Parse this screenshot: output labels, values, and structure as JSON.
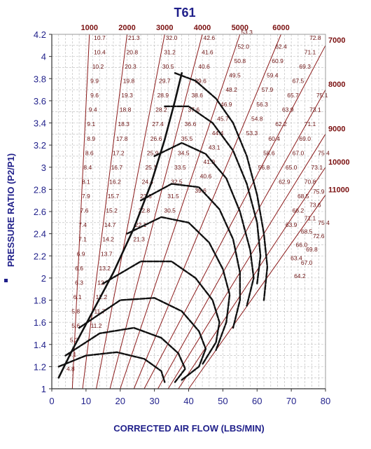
{
  "chart_data": {
    "type": "line",
    "title": "T61",
    "xlabel": "CORRECTED AIR FLOW (LBS/MIN)",
    "ylabel": "PRESSURE RATIO (P2/P1)",
    "xlim": [
      0,
      80
    ],
    "ylim": [
      1,
      4.2
    ],
    "xticks": [
      0,
      10,
      20,
      30,
      40,
      50,
      60,
      70,
      80
    ],
    "yticks": [
      1,
      1.2,
      1.4,
      1.6,
      1.8,
      2,
      2.2,
      2.4,
      2.6,
      2.8,
      3,
      3.2,
      3.4,
      3.6,
      3.8,
      4,
      4.2
    ],
    "grid": true,
    "speed_lines": [
      {
        "label": "1000",
        "points": [
          [
            6,
            1.0
          ],
          [
            11,
            4.2
          ]
        ]
      },
      {
        "label": "2000",
        "points": [
          [
            9,
            1.0
          ],
          [
            22,
            4.2
          ]
        ]
      },
      {
        "label": "3000",
        "points": [
          [
            13,
            1.0
          ],
          [
            33,
            4.2
          ]
        ]
      },
      {
        "label": "4000",
        "points": [
          [
            17,
            1.0
          ],
          [
            44,
            4.2
          ]
        ]
      },
      {
        "label": "5000",
        "points": [
          [
            20,
            1.0
          ],
          [
            55,
            4.2
          ]
        ]
      },
      {
        "label": "6000",
        "points": [
          [
            24,
            1.0
          ],
          [
            67,
            4.2
          ]
        ]
      },
      {
        "label": "7000",
        "points": [
          [
            27,
            1.0
          ],
          [
            80,
            4.1
          ]
        ]
      },
      {
        "label": "8000",
        "points": [
          [
            31,
            1.0
          ],
          [
            80,
            3.7
          ]
        ]
      },
      {
        "label": "9000",
        "points": [
          [
            34,
            1.0
          ],
          [
            80,
            3.3
          ]
        ]
      },
      {
        "label": "10000",
        "points": [
          [
            37,
            1.0
          ],
          [
            80,
            3.0
          ]
        ]
      },
      {
        "label": "11000",
        "points": [
          [
            40,
            1.0
          ],
          [
            80,
            2.75
          ]
        ]
      }
    ],
    "efficiency_values": [
      {
        "x": 14,
        "y": 4.15,
        "label": "10.7"
      },
      {
        "x": 14,
        "y": 4.02,
        "label": "10.4"
      },
      {
        "x": 13.5,
        "y": 3.89,
        "label": "10.2"
      },
      {
        "x": 12.5,
        "y": 3.76,
        "label": "9.9"
      },
      {
        "x": 12.5,
        "y": 3.63,
        "label": "9.6"
      },
      {
        "x": 12,
        "y": 3.5,
        "label": "9.4"
      },
      {
        "x": 11.5,
        "y": 3.37,
        "label": "9.1"
      },
      {
        "x": 11.5,
        "y": 3.24,
        "label": "8.9"
      },
      {
        "x": 11,
        "y": 3.11,
        "label": "8.6"
      },
      {
        "x": 10.5,
        "y": 2.98,
        "label": "8.4"
      },
      {
        "x": 10,
        "y": 2.85,
        "label": "8.1"
      },
      {
        "x": 10,
        "y": 2.72,
        "label": "7.9"
      },
      {
        "x": 9.5,
        "y": 2.59,
        "label": "7.6"
      },
      {
        "x": 9,
        "y": 2.46,
        "label": "7.4"
      },
      {
        "x": 9,
        "y": 2.33,
        "label": "7.1"
      },
      {
        "x": 8.5,
        "y": 2.2,
        "label": "6.9"
      },
      {
        "x": 8,
        "y": 2.07,
        "label": "6.6"
      },
      {
        "x": 8,
        "y": 1.94,
        "label": "6.3"
      },
      {
        "x": 7.5,
        "y": 1.81,
        "label": "6.1"
      },
      {
        "x": 7,
        "y": 1.68,
        "label": "5.8"
      },
      {
        "x": 7,
        "y": 1.55,
        "label": "5.6"
      },
      {
        "x": 6.5,
        "y": 1.42,
        "label": "5.3"
      },
      {
        "x": 6,
        "y": 1.29,
        "label": "5.1"
      },
      {
        "x": 5.5,
        "y": 1.16,
        "label": "4.8"
      },
      {
        "x": 24,
        "y": 4.15,
        "label": "21.3"
      },
      {
        "x": 23.5,
        "y": 4.02,
        "label": "20.8"
      },
      {
        "x": 23,
        "y": 3.89,
        "label": "20.3"
      },
      {
        "x": 22.5,
        "y": 3.76,
        "label": "19.8"
      },
      {
        "x": 22,
        "y": 3.63,
        "label": "19.3"
      },
      {
        "x": 21.5,
        "y": 3.5,
        "label": "18.8"
      },
      {
        "x": 21,
        "y": 3.37,
        "label": "18.3"
      },
      {
        "x": 20.5,
        "y": 3.24,
        "label": "17.8"
      },
      {
        "x": 19.5,
        "y": 3.11,
        "label": "17.2"
      },
      {
        "x": 19,
        "y": 2.98,
        "label": "16.7"
      },
      {
        "x": 18.5,
        "y": 2.85,
        "label": "16.2"
      },
      {
        "x": 18,
        "y": 2.72,
        "label": "15.7"
      },
      {
        "x": 17.5,
        "y": 2.59,
        "label": "15.2"
      },
      {
        "x": 17,
        "y": 2.46,
        "label": "14.7"
      },
      {
        "x": 16.5,
        "y": 2.33,
        "label": "14.2"
      },
      {
        "x": 16,
        "y": 2.2,
        "label": "13.7"
      },
      {
        "x": 15.5,
        "y": 2.07,
        "label": "13.2"
      },
      {
        "x": 15,
        "y": 1.94,
        "label": "12.7"
      },
      {
        "x": 14.5,
        "y": 1.81,
        "label": "12.2"
      },
      {
        "x": 14,
        "y": 1.68,
        "label": "11.7"
      },
      {
        "x": 13,
        "y": 1.55,
        "label": "11.2"
      },
      {
        "x": 35,
        "y": 4.15,
        "label": "32.0"
      },
      {
        "x": 34.5,
        "y": 4.02,
        "label": "31.2"
      },
      {
        "x": 34,
        "y": 3.89,
        "label": "30.5"
      },
      {
        "x": 33,
        "y": 3.76,
        "label": "29.7"
      },
      {
        "x": 32.5,
        "y": 3.63,
        "label": "28.9"
      },
      {
        "x": 32,
        "y": 3.5,
        "label": "28.2"
      },
      {
        "x": 31,
        "y": 3.37,
        "label": "27.4"
      },
      {
        "x": 30.5,
        "y": 3.24,
        "label": "26.6"
      },
      {
        "x": 29.5,
        "y": 3.11,
        "label": "25.9"
      },
      {
        "x": 29,
        "y": 2.98,
        "label": "25.1"
      },
      {
        "x": 28,
        "y": 2.85,
        "label": "24.4"
      },
      {
        "x": 27.5,
        "y": 2.72,
        "label": "23.6"
      },
      {
        "x": 27,
        "y": 2.59,
        "label": "22.8"
      },
      {
        "x": 26,
        "y": 2.46,
        "label": "22.1"
      },
      {
        "x": 25.5,
        "y": 2.33,
        "label": "21.3"
      },
      {
        "x": 46,
        "y": 4.15,
        "label": "42.6"
      },
      {
        "x": 45.5,
        "y": 4.02,
        "label": "41.6"
      },
      {
        "x": 44.5,
        "y": 3.89,
        "label": "40.6"
      },
      {
        "x": 43.5,
        "y": 3.76,
        "label": "39.6"
      },
      {
        "x": 42.5,
        "y": 3.63,
        "label": "38.6"
      },
      {
        "x": 41.5,
        "y": 3.5,
        "label": "37.6"
      },
      {
        "x": 40.5,
        "y": 3.37,
        "label": "36.6"
      },
      {
        "x": 39.5,
        "y": 3.24,
        "label": "35.5"
      },
      {
        "x": 38.5,
        "y": 3.11,
        "label": "34.5"
      },
      {
        "x": 37.5,
        "y": 2.98,
        "label": "33.5"
      },
      {
        "x": 36.5,
        "y": 2.85,
        "label": "32.5"
      },
      {
        "x": 35.5,
        "y": 2.72,
        "label": "31.5"
      },
      {
        "x": 34.5,
        "y": 2.59,
        "label": "30.5"
      },
      {
        "x": 57,
        "y": 4.2,
        "label": "53.3"
      },
      {
        "x": 56,
        "y": 4.07,
        "label": "52.0"
      },
      {
        "x": 55,
        "y": 3.94,
        "label": "50.8"
      },
      {
        "x": 53.5,
        "y": 3.81,
        "label": "49.5"
      },
      {
        "x": 52.5,
        "y": 3.68,
        "label": "48.2"
      },
      {
        "x": 51,
        "y": 3.55,
        "label": "46.9"
      },
      {
        "x": 50,
        "y": 3.42,
        "label": "45.7"
      },
      {
        "x": 48.5,
        "y": 3.29,
        "label": "44.4"
      },
      {
        "x": 47.5,
        "y": 3.16,
        "label": "43.1"
      },
      {
        "x": 46,
        "y": 3.03,
        "label": "41.9"
      },
      {
        "x": 45,
        "y": 2.9,
        "label": "40.6"
      },
      {
        "x": 43.5,
        "y": 2.77,
        "label": "39.6"
      },
      {
        "x": 67,
        "y": 4.07,
        "label": "62.4"
      },
      {
        "x": 66,
        "y": 3.94,
        "label": "60.9"
      },
      {
        "x": 64.5,
        "y": 3.81,
        "label": "59.4"
      },
      {
        "x": 63,
        "y": 3.68,
        "label": "57.9"
      },
      {
        "x": 61.5,
        "y": 3.55,
        "label": "56.3"
      },
      {
        "x": 60,
        "y": 3.42,
        "label": "54.8"
      },
      {
        "x": 58.5,
        "y": 3.29,
        "label": "53.3"
      },
      {
        "x": 77,
        "y": 4.15,
        "label": "72.8"
      },
      {
        "x": 75.5,
        "y": 4.02,
        "label": "71.1"
      },
      {
        "x": 74,
        "y": 3.89,
        "label": "69.3"
      },
      {
        "x": 72,
        "y": 3.76,
        "label": "67.5"
      },
      {
        "x": 70.5,
        "y": 3.63,
        "label": "65.7"
      },
      {
        "x": 69,
        "y": 3.5,
        "label": "63.9"
      },
      {
        "x": 67,
        "y": 3.37,
        "label": "62.2"
      },
      {
        "x": 65,
        "y": 3.24,
        "label": "60.4"
      },
      {
        "x": 63.5,
        "y": 3.11,
        "label": "58.6"
      },
      {
        "x": 62,
        "y": 2.98,
        "label": "56.8"
      },
      {
        "x": 79,
        "y": 3.63,
        "label": "75.1"
      },
      {
        "x": 77,
        "y": 3.5,
        "label": "73.1"
      },
      {
        "x": 75.5,
        "y": 3.37,
        "label": "71.1"
      },
      {
        "x": 74,
        "y": 3.24,
        "label": "69.0"
      },
      {
        "x": 72,
        "y": 3.11,
        "label": "67.0"
      },
      {
        "x": 70,
        "y": 2.98,
        "label": "65.0"
      },
      {
        "x": 68,
        "y": 2.85,
        "label": "62.9"
      },
      {
        "x": 79.5,
        "y": 3.11,
        "label": "75.4"
      },
      {
        "x": 77.5,
        "y": 2.98,
        "label": "73.1"
      },
      {
        "x": 75.5,
        "y": 2.85,
        "label": "70.8"
      },
      {
        "x": 73.5,
        "y": 2.72,
        "label": "68.5"
      },
      {
        "x": 72,
        "y": 2.59,
        "label": "66.2"
      },
      {
        "x": 70,
        "y": 2.46,
        "label": "63.9"
      },
      {
        "x": 78,
        "y": 2.76,
        "label": "75.9"
      },
      {
        "x": 77,
        "y": 2.64,
        "label": "73.6"
      },
      {
        "x": 75.5,
        "y": 2.52,
        "label": "71.1"
      },
      {
        "x": 74.5,
        "y": 2.4,
        "label": "68.5"
      },
      {
        "x": 73,
        "y": 2.28,
        "label": "66.0"
      },
      {
        "x": 71.5,
        "y": 2.16,
        "label": "63.4"
      },
      {
        "x": 79.5,
        "y": 2.48,
        "label": "75.4"
      },
      {
        "x": 78,
        "y": 2.36,
        "label": "72.6"
      },
      {
        "x": 76,
        "y": 2.24,
        "label": "69.8"
      },
      {
        "x": 74.5,
        "y": 2.12,
        "label": "67.0"
      },
      {
        "x": 72.5,
        "y": 2.0,
        "label": "64.2"
      }
    ],
    "contours": [
      {
        "points": [
          [
            36,
            3.85
          ],
          [
            42,
            3.78
          ],
          [
            48,
            3.62
          ],
          [
            53,
            3.4
          ],
          [
            57,
            3.1
          ],
          [
            60,
            2.75
          ],
          [
            62,
            2.4
          ],
          [
            63,
            2.1
          ],
          [
            62,
            1.8
          ]
        ]
      },
      {
        "points": [
          [
            33,
            3.55
          ],
          [
            40,
            3.55
          ],
          [
            47,
            3.4
          ],
          [
            53,
            3.15
          ],
          [
            57,
            2.85
          ],
          [
            60,
            2.5
          ],
          [
            61,
            2.2
          ],
          [
            60,
            1.95
          ]
        ]
      },
      {
        "points": [
          [
            30,
            3.1
          ],
          [
            38,
            3.22
          ],
          [
            45,
            3.12
          ],
          [
            51,
            2.9
          ],
          [
            55,
            2.6
          ],
          [
            58,
            2.25
          ],
          [
            59,
            2.0
          ],
          [
            57,
            1.75
          ]
        ]
      },
      {
        "points": [
          [
            26,
            2.7
          ],
          [
            35,
            2.85
          ],
          [
            43,
            2.82
          ],
          [
            49,
            2.62
          ],
          [
            53,
            2.35
          ],
          [
            55,
            2.05
          ],
          [
            55,
            1.8
          ],
          [
            53,
            1.55
          ]
        ]
      },
      {
        "points": [
          [
            22,
            2.4
          ],
          [
            32,
            2.55
          ],
          [
            40,
            2.5
          ],
          [
            46,
            2.32
          ],
          [
            50,
            2.08
          ],
          [
            52,
            1.85
          ],
          [
            51,
            1.6
          ],
          [
            48,
            1.35
          ]
        ]
      },
      {
        "points": [
          [
            15,
            1.95
          ],
          [
            26,
            2.15
          ],
          [
            35,
            2.15
          ],
          [
            42,
            2.0
          ],
          [
            47,
            1.8
          ],
          [
            49,
            1.6
          ],
          [
            48,
            1.42
          ],
          [
            44,
            1.22
          ]
        ]
      },
      {
        "points": [
          [
            8,
            1.55
          ],
          [
            20,
            1.8
          ],
          [
            30,
            1.82
          ],
          [
            38,
            1.7
          ],
          [
            43,
            1.52
          ],
          [
            45,
            1.36
          ],
          [
            43,
            1.2
          ],
          [
            38,
            1.08
          ]
        ]
      },
      {
        "points": [
          [
            4,
            1.3
          ],
          [
            14,
            1.5
          ],
          [
            24,
            1.55
          ],
          [
            32,
            1.46
          ],
          [
            37,
            1.32
          ],
          [
            39,
            1.18
          ],
          [
            36,
            1.06
          ]
        ]
      },
      {
        "points": [
          [
            2,
            1.2
          ],
          [
            10,
            1.3
          ],
          [
            19,
            1.33
          ],
          [
            27,
            1.27
          ],
          [
            32,
            1.16
          ],
          [
            33,
            1.06
          ]
        ]
      }
    ],
    "surge_line": {
      "points": [
        [
          2,
          1.1
        ],
        [
          6,
          1.35
        ],
        [
          12,
          1.7
        ],
        [
          18,
          2.05
        ],
        [
          24,
          2.45
        ],
        [
          29,
          2.85
        ],
        [
          33,
          3.25
        ],
        [
          36,
          3.6
        ],
        [
          38,
          3.85
        ]
      ]
    }
  }
}
